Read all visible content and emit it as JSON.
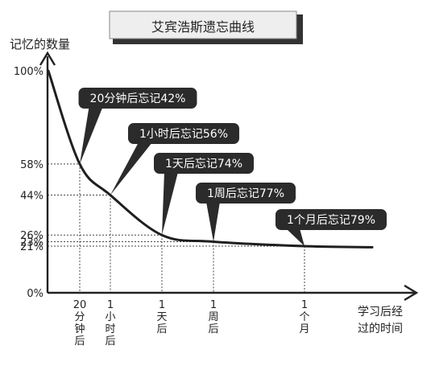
{
  "colors": {
    "curve": "#1f1f1f",
    "axis": "#222222",
    "bubble_fill": "#2b2b2b",
    "bubble_text": "#ffffff",
    "title_box": "#eeeeee",
    "title_shadow": "#333333",
    "guide": "#444444"
  },
  "chart_data": {
    "type": "line",
    "title": "艾宾浩斯遗忘曲线",
    "ylabel": "记忆的数量",
    "xlabel_lines": [
      "学习后经",
      "过的时间"
    ],
    "ylim": [
      0,
      100
    ],
    "y_ticks": [
      {
        "value": 100,
        "label": "100%"
      },
      {
        "value": 58,
        "label": "58%"
      },
      {
        "value": 44,
        "label": "44%"
      },
      {
        "value": 26,
        "label": "26%"
      },
      {
        "value": 23,
        "label": "23%"
      },
      {
        "value": 21,
        "label": "21%"
      },
      {
        "value": 0,
        "label": "0%"
      }
    ],
    "points": [
      {
        "x_chars": [
          "20",
          "分",
          "钟",
          "后"
        ],
        "y": 58,
        "annotation": "20分钟后忘记42%"
      },
      {
        "x_chars": [
          "1",
          "小",
          "时",
          "后"
        ],
        "y": 44,
        "annotation": "1小时后忘记56%"
      },
      {
        "x_chars": [
          "1",
          "天",
          "后"
        ],
        "y": 26,
        "annotation": "1天后忘记74%"
      },
      {
        "x_chars": [
          "1",
          "周",
          "后"
        ],
        "y": 23,
        "annotation": "1周后忘记77%"
      },
      {
        "x_chars": [
          "1",
          "个",
          "月"
        ],
        "y": 21,
        "annotation": "1个月后忘记79%"
      }
    ],
    "grid": false
  }
}
